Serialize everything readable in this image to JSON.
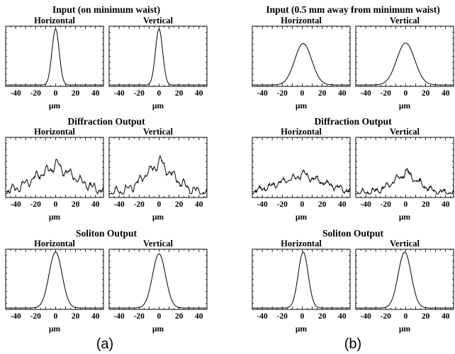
{
  "figure": {
    "panel_labels": [
      "(a)",
      "(b)"
    ]
  },
  "chart_data": [
    {
      "column": "(a)",
      "group_title": "Input (on minimum waist)",
      "type": "line",
      "plots": [
        {
          "subtitle": "Horizontal",
          "xlabel": "µm",
          "xlim": [
            -50,
            48
          ],
          "xticks": [
            -40,
            -20,
            0,
            20,
            40
          ],
          "shape": "narrow_peak",
          "center": 0,
          "sigma": 3.6,
          "amplitude": 1.0
        },
        {
          "subtitle": "Vertical",
          "xlabel": "µm",
          "xlim": [
            -50,
            48
          ],
          "xticks": [
            -40,
            -20,
            0,
            20,
            40
          ],
          "shape": "narrow_peak",
          "center": 0,
          "sigma": 3.6,
          "amplitude": 1.0
        }
      ]
    },
    {
      "column": "(a)",
      "group_title": "Diffraction Output",
      "type": "line",
      "plots": [
        {
          "subtitle": "Horizontal",
          "xlabel": "µm",
          "xlim": [
            -50,
            48
          ],
          "xticks": [
            -40,
            -20,
            0,
            20,
            40
          ],
          "shape": "broad_noisy",
          "center": 0,
          "width": 22,
          "amplitude": 0.42
        },
        {
          "subtitle": "Vertical",
          "xlabel": "µm",
          "xlim": [
            -50,
            48
          ],
          "xticks": [
            -40,
            -20,
            0,
            20,
            40
          ],
          "shape": "broad_noisy",
          "center": 0,
          "width": 16,
          "amplitude": 0.46
        }
      ]
    },
    {
      "column": "(a)",
      "group_title": "Soliton Output",
      "type": "line",
      "plots": [
        {
          "subtitle": "Horizontal",
          "xlabel": "µm",
          "xlim": [
            -50,
            48
          ],
          "xticks": [
            -40,
            -20,
            0,
            20,
            40
          ],
          "shape": "gaussian",
          "center": 0,
          "sigma": 6.5,
          "amplitude": 1.0
        },
        {
          "subtitle": "Vertical",
          "xlabel": "µm",
          "xlim": [
            -50,
            48
          ],
          "xticks": [
            -40,
            -20,
            0,
            20,
            40
          ],
          "shape": "gaussian",
          "center": 0,
          "sigma": 6.5,
          "amplitude": 0.97
        }
      ]
    },
    {
      "column": "(b)",
      "group_title": "Input (0.5 mm away from minimum waist)",
      "type": "line",
      "plots": [
        {
          "subtitle": "Horizontal",
          "xlabel": "µm",
          "xlim": [
            -50,
            48
          ],
          "xticks": [
            -40,
            -20,
            0,
            20,
            40
          ],
          "shape": "gaussian",
          "center": 1,
          "sigma": 8.5,
          "amplitude": 0.74
        },
        {
          "subtitle": "Vertical",
          "xlabel": "µm",
          "xlim": [
            -50,
            48
          ],
          "xticks": [
            -40,
            -20,
            0,
            20,
            40
          ],
          "shape": "gaussian",
          "center": 0,
          "sigma": 9,
          "amplitude": 0.75
        }
      ]
    },
    {
      "column": "(b)",
      "group_title": "Diffraction Output",
      "type": "line",
      "plots": [
        {
          "subtitle": "Horizontal",
          "xlabel": "µm",
          "xlim": [
            -50,
            48
          ],
          "xticks": [
            -40,
            -20,
            0,
            20,
            40
          ],
          "shape": "broad_noisy",
          "center": 0,
          "width": 24,
          "amplitude": 0.28
        },
        {
          "subtitle": "Vertical",
          "xlabel": "µm",
          "xlim": [
            -50,
            48
          ],
          "xticks": [
            -40,
            -20,
            0,
            20,
            40
          ],
          "shape": "broad_noisy",
          "center": 0,
          "width": 14,
          "amplitude": 0.3
        }
      ]
    },
    {
      "column": "(b)",
      "group_title": "Soliton Output",
      "type": "line",
      "plots": [
        {
          "subtitle": "Horizontal",
          "xlabel": "µm",
          "xlim": [
            -50,
            48
          ],
          "xticks": [
            -40,
            -20,
            0,
            20,
            40
          ],
          "shape": "gaussian",
          "center": 1,
          "sigma": 5,
          "amplitude": 1.0
        },
        {
          "subtitle": "Vertical",
          "xlabel": "µm",
          "xlim": [
            -50,
            48
          ],
          "xticks": [
            -40,
            -20,
            0,
            20,
            40
          ],
          "shape": "gaussian",
          "center": -1,
          "sigma": 6.5,
          "amplitude": 1.0
        }
      ]
    }
  ]
}
